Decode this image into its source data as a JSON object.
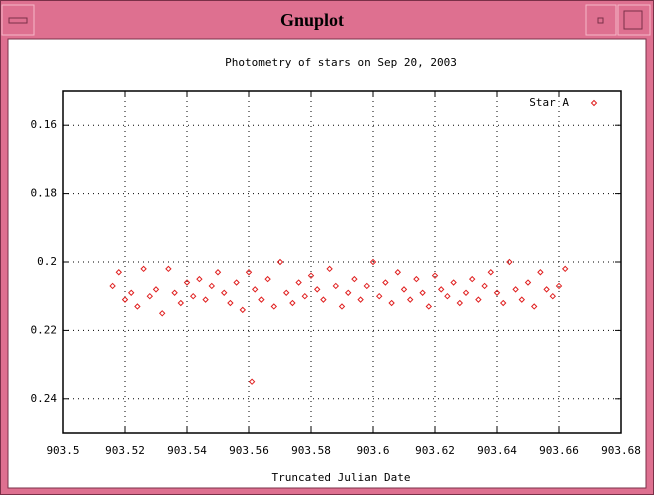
{
  "window": {
    "title": "Gnuplot"
  },
  "chart_data": {
    "type": "scatter",
    "title": "Photometry of stars on Sep 20, 2003",
    "x_label": "Truncated Julian Date",
    "xlim": [
      903.5,
      903.68
    ],
    "xticks": [
      903.5,
      903.52,
      903.54,
      903.56,
      903.58,
      903.6,
      903.62,
      903.64,
      903.66,
      903.68
    ],
    "ylim": [
      0.25,
      0.15
    ],
    "yticks": [
      0.16,
      0.18,
      0.2,
      0.22,
      0.24
    ],
    "grid": true,
    "legend": "top-right",
    "series": [
      {
        "name": "Star A",
        "color": "#e02020",
        "x": [
          903.516,
          903.518,
          903.52,
          903.522,
          903.524,
          903.526,
          903.528,
          903.53,
          903.532,
          903.534,
          903.536,
          903.538,
          903.54,
          903.542,
          903.544,
          903.546,
          903.548,
          903.55,
          903.552,
          903.554,
          903.556,
          903.558,
          903.56,
          903.562,
          903.564,
          903.566,
          903.568,
          903.57,
          903.572,
          903.574,
          903.576,
          903.578,
          903.58,
          903.582,
          903.584,
          903.586,
          903.588,
          903.59,
          903.592,
          903.594,
          903.596,
          903.598,
          903.6,
          903.602,
          903.604,
          903.606,
          903.608,
          903.61,
          903.612,
          903.614,
          903.616,
          903.618,
          903.62,
          903.622,
          903.624,
          903.626,
          903.628,
          903.63,
          903.632,
          903.634,
          903.636,
          903.638,
          903.64,
          903.642,
          903.644,
          903.646,
          903.648,
          903.65,
          903.652,
          903.654,
          903.656,
          903.658,
          903.66,
          903.662,
          903.561
        ],
        "values": [
          0.207,
          0.203,
          0.211,
          0.209,
          0.213,
          0.202,
          0.21,
          0.208,
          0.215,
          0.202,
          0.209,
          0.212,
          0.206,
          0.21,
          0.205,
          0.211,
          0.207,
          0.203,
          0.209,
          0.212,
          0.206,
          0.214,
          0.203,
          0.208,
          0.211,
          0.205,
          0.213,
          0.2,
          0.209,
          0.212,
          0.206,
          0.21,
          0.204,
          0.208,
          0.211,
          0.202,
          0.207,
          0.213,
          0.209,
          0.205,
          0.211,
          0.207,
          0.2,
          0.21,
          0.206,
          0.212,
          0.203,
          0.208,
          0.211,
          0.205,
          0.209,
          0.213,
          0.204,
          0.208,
          0.21,
          0.206,
          0.212,
          0.209,
          0.205,
          0.211,
          0.207,
          0.203,
          0.209,
          0.212,
          0.2,
          0.208,
          0.211,
          0.206,
          0.213,
          0.203,
          0.208,
          0.21,
          0.207,
          0.202,
          0.235
        ]
      }
    ]
  }
}
